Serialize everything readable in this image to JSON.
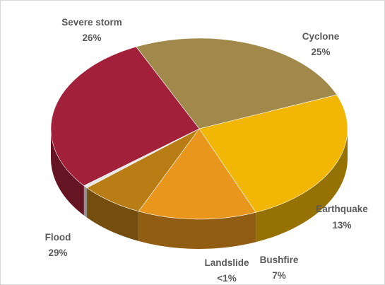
{
  "chart_data": {
    "type": "pie",
    "title": "",
    "slices": [
      {
        "label": "Cyclone",
        "value_label": "25%",
        "value": 25,
        "color": "#f2b705"
      },
      {
        "label": "Earthquake",
        "value_label": "13%",
        "value": 13,
        "color": "#e9961d"
      },
      {
        "label": "Bushfire",
        "value_label": "7%",
        "value": 7,
        "color": "#b97d16"
      },
      {
        "label": "Landslide",
        "value_label": "<1%",
        "value": 0.5,
        "color": "#e8e8e8"
      },
      {
        "label": "Flood",
        "value_label": "29%",
        "value": 29,
        "color": "#a3203a"
      },
      {
        "label": "Severe storm",
        "value_label": "26%",
        "value": 26,
        "color": "#a0894a"
      }
    ],
    "style": "3d-exploded-tilt",
    "legend": "none"
  }
}
